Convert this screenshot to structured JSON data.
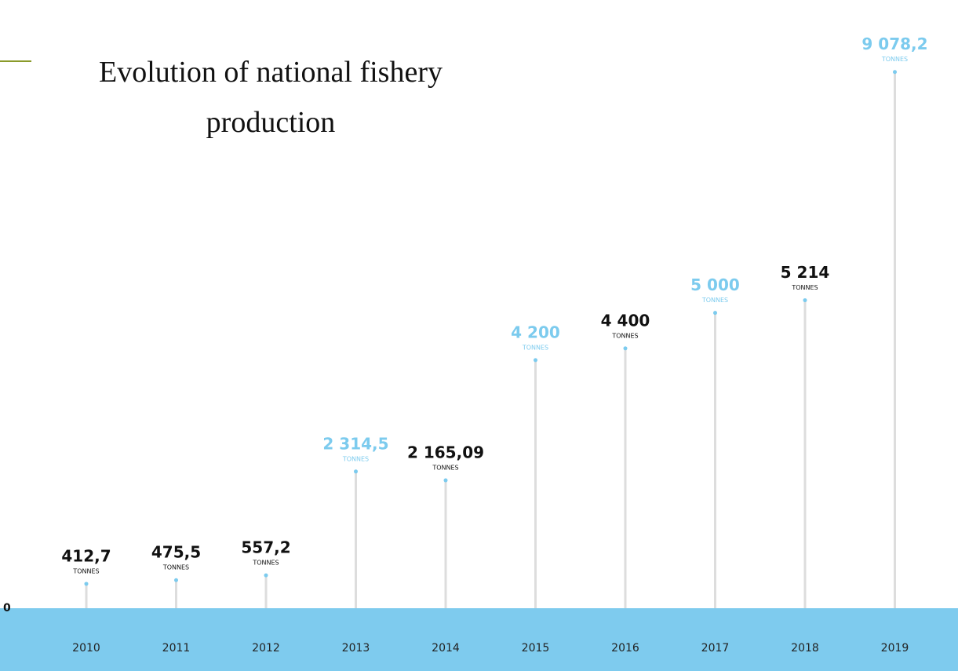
{
  "chart_data": {
    "type": "lollipop",
    "title": "Evolution of national fishery production",
    "categories": [
      "2010",
      "2011",
      "2012",
      "2013",
      "2014",
      "2015",
      "2016",
      "2017",
      "2018",
      "2019"
    ],
    "values": [
      412.7,
      475.5,
      557.2,
      2314.5,
      2165.09,
      4200,
      4400,
      5000,
      5214,
      9078.2
    ],
    "value_labels": [
      "412,7",
      "475,5",
      "557,2",
      "2 314,5",
      "2 165,09",
      "4 200",
      "4 400",
      "5 000",
      "5 214",
      "9 078,2"
    ],
    "unit": "TONNES",
    "label_colors": [
      "#111111",
      "#111111",
      "#111111",
      "#7ccbee",
      "#111111",
      "#7ccbee",
      "#111111",
      "#7ccbee",
      "#111111",
      "#7ccbee"
    ],
    "stem_color": "#dddddd",
    "ylim": [
      0,
      9500
    ],
    "yticks": [
      0
    ]
  }
}
